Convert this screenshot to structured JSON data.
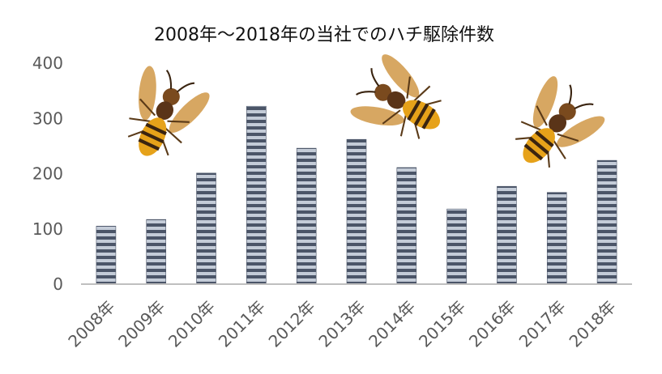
{
  "chart_data": {
    "type": "bar",
    "title": "2008年〜2018年の当社でのハチ駆除件数",
    "xlabel": "",
    "ylabel": "",
    "categories": [
      "2008年",
      "2009年",
      "2010年",
      "2011年",
      "2012年",
      "2013年",
      "2014年",
      "2015年",
      "2016年",
      "2017年",
      "2018年"
    ],
    "values": [
      105,
      117,
      201,
      322,
      246,
      262,
      211,
      136,
      177,
      166,
      224
    ],
    "ylim": [
      0,
      400
    ],
    "yticks": [
      0,
      100,
      200,
      300,
      400
    ],
    "grid": false,
    "legend": "none",
    "bar_colors": {
      "light": "#c4ccd8",
      "dark": "#4b5568"
    },
    "axis_color": "#bfbfbf",
    "decorations": [
      "hornet-icon",
      "hornet-icon",
      "hornet-icon"
    ]
  }
}
